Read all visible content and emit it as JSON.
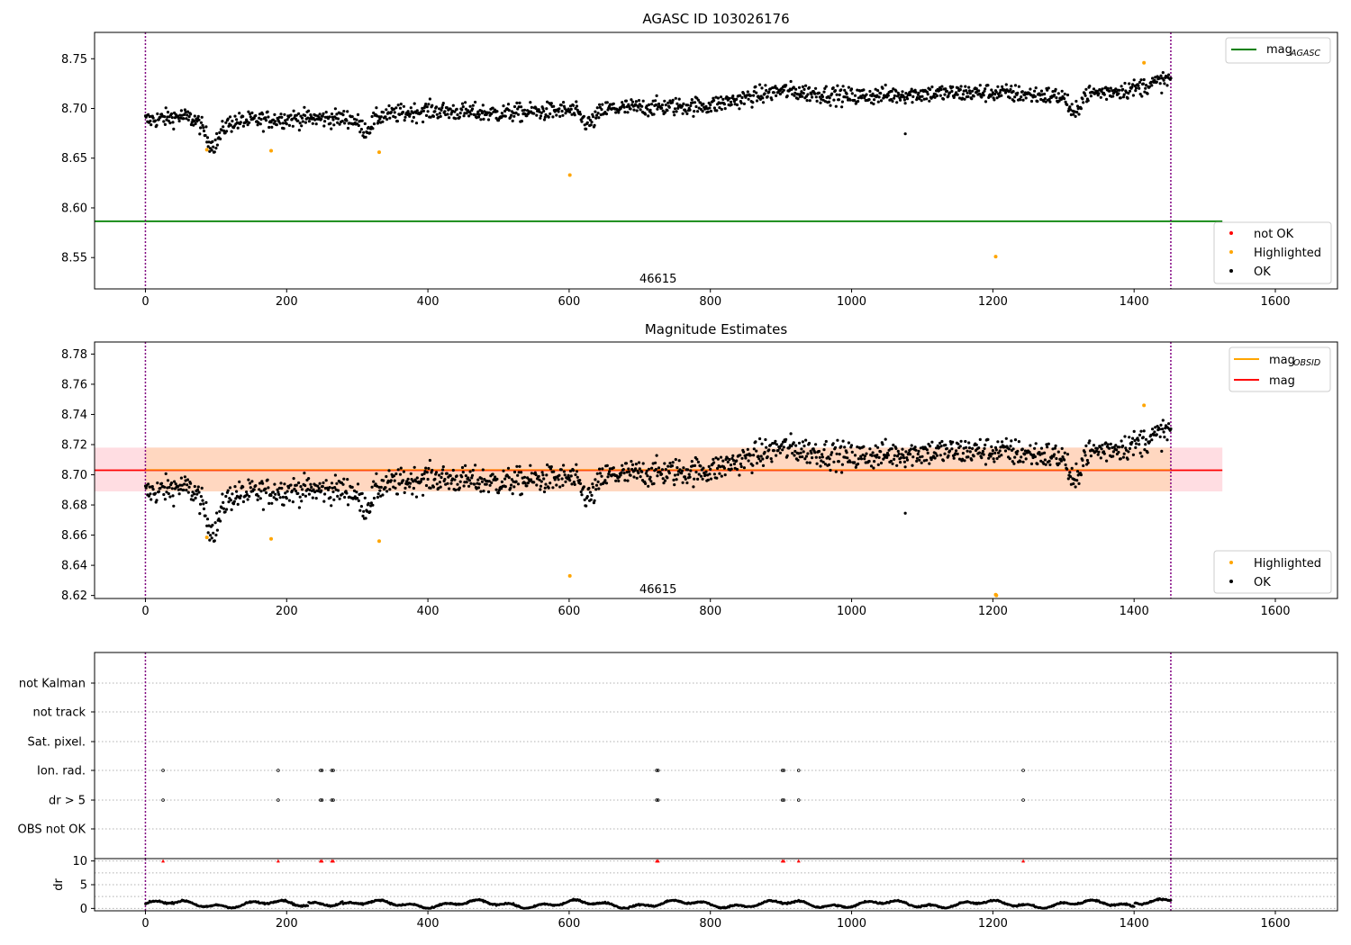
{
  "colors": {
    "ok": "#000000",
    "highlighted": "#ffa500",
    "not_ok": "#ff0000",
    "mag_agasc_line": "#008000",
    "mag_obsid_line": "#ffa500",
    "mag_line": "#ff0000",
    "band_outer": "#ffdde2",
    "band_inner": "#ffd7c0",
    "obsid_line": "#800080",
    "grid": "#b0b0b0"
  },
  "chart_data": [
    {
      "type": "scatter",
      "title": "AGASC ID 103026176",
      "xlim": [
        -72,
        1688
      ],
      "ylim": [
        8.5185,
        8.7765
      ],
      "xticks": [
        0,
        200,
        400,
        600,
        800,
        1000,
        1200,
        1400,
        1600
      ],
      "yticks": [
        8.55,
        8.6,
        8.65,
        8.7,
        8.75
      ],
      "ytick_labels": [
        "8.55",
        "8.60",
        "8.65",
        "8.70",
        "8.75"
      ],
      "obsid_lines": [
        0,
        1452
      ],
      "obsid_label": {
        "text": "46615",
        "x": 726,
        "y": 8.5295
      },
      "mag_agasc": 8.5865,
      "mag_agasc_xrange": [
        -72,
        1525
      ],
      "trend": {
        "x": [
          0,
          50,
          100,
          200,
          300,
          400,
          500,
          600,
          700,
          800,
          900,
          1000,
          1100,
          1200,
          1300,
          1400,
          1452
        ],
        "y": [
          8.688,
          8.692,
          8.685,
          8.69,
          8.69,
          8.698,
          8.695,
          8.698,
          8.701,
          8.703,
          8.718,
          8.712,
          8.715,
          8.716,
          8.712,
          8.72,
          8.73
        ]
      },
      "dips": [
        {
          "x": 95,
          "w": 14,
          "d": 0.022
        },
        {
          "x": 312,
          "w": 12,
          "d": 0.012
        },
        {
          "x": 628,
          "w": 14,
          "d": 0.014
        },
        {
          "x": 1315,
          "w": 9,
          "d": 0.02
        }
      ],
      "highlighted": {
        "x": [
          87,
          178,
          331,
          601,
          1204,
          1414
        ],
        "y": [
          8.6585,
          8.6575,
          8.656,
          8.633,
          8.551,
          8.746
        ]
      },
      "legend_lines": [
        {
          "name": "mag",
          "sub": "AGASC"
        }
      ],
      "legend_points": [
        "not OK",
        "Highlighted",
        "OK"
      ]
    },
    {
      "type": "scatter",
      "title": "Magnitude Estimates",
      "xlim": [
        -72,
        1688
      ],
      "ylim": [
        8.618,
        8.788
      ],
      "xticks": [
        0,
        200,
        400,
        600,
        800,
        1000,
        1200,
        1400,
        1600
      ],
      "yticks": [
        8.62,
        8.64,
        8.66,
        8.68,
        8.7,
        8.72,
        8.74,
        8.76,
        8.78
      ],
      "ytick_labels": [
        "8.62",
        "8.64",
        "8.66",
        "8.68",
        "8.70",
        "8.72",
        "8.74",
        "8.76",
        "8.78"
      ],
      "obsid_lines": [
        0,
        1452
      ],
      "obsid_label": {
        "text": "46615",
        "x": 726,
        "y": 8.6245
      },
      "mag": 8.703,
      "mag_xrange": [
        -72,
        1525
      ],
      "band_outer": [
        8.689,
        8.718
      ],
      "band_inner": [
        8.689,
        8.718
      ],
      "band_inner_xrange": [
        0,
        1452
      ],
      "highlighted": {
        "x": [
          87,
          178,
          331,
          601,
          1204,
          1205,
          1414
        ],
        "y": [
          8.6585,
          8.6575,
          8.656,
          8.633,
          8.6205,
          8.62,
          8.746
        ]
      },
      "legend_lines": [
        {
          "name": "mag",
          "sub": "OBSID"
        },
        {
          "name": "mag",
          "sub": ""
        }
      ],
      "legend_points": [
        "Highlighted",
        "OK"
      ]
    },
    {
      "type": "scatter",
      "categories": [
        "OBS not OK",
        "dr > 5",
        "Ion. rad.",
        "Sat. pixel.",
        "not track",
        "not Kalman"
      ],
      "flag_x": [
        25,
        188,
        248,
        250,
        264,
        266,
        724,
        726,
        902,
        904,
        925,
        1243
      ],
      "flag_rows": [
        "dr > 5",
        "Ion. rad."
      ],
      "xlim": [
        -72,
        1688
      ],
      "xticks": [
        0,
        200,
        400,
        600,
        800,
        1000,
        1200,
        1400,
        1600
      ],
      "obsid_lines": [
        0,
        1452
      ]
    },
    {
      "type": "scatter",
      "ylabel": "dr",
      "xlim": [
        -72,
        1688
      ],
      "ylim": [
        -0.5,
        10.5
      ],
      "xticks": [
        0,
        200,
        400,
        600,
        800,
        1000,
        1200,
        1400,
        1600
      ],
      "yticks": [
        0,
        5,
        10
      ],
      "ytick_labels": [
        "0",
        "5",
        "10"
      ],
      "capped_x": [
        25,
        188,
        248,
        250,
        264,
        266,
        724,
        726,
        902,
        904,
        925,
        1243
      ],
      "capped_value": 10,
      "obsid_lines": [
        0,
        1452
      ]
    }
  ]
}
